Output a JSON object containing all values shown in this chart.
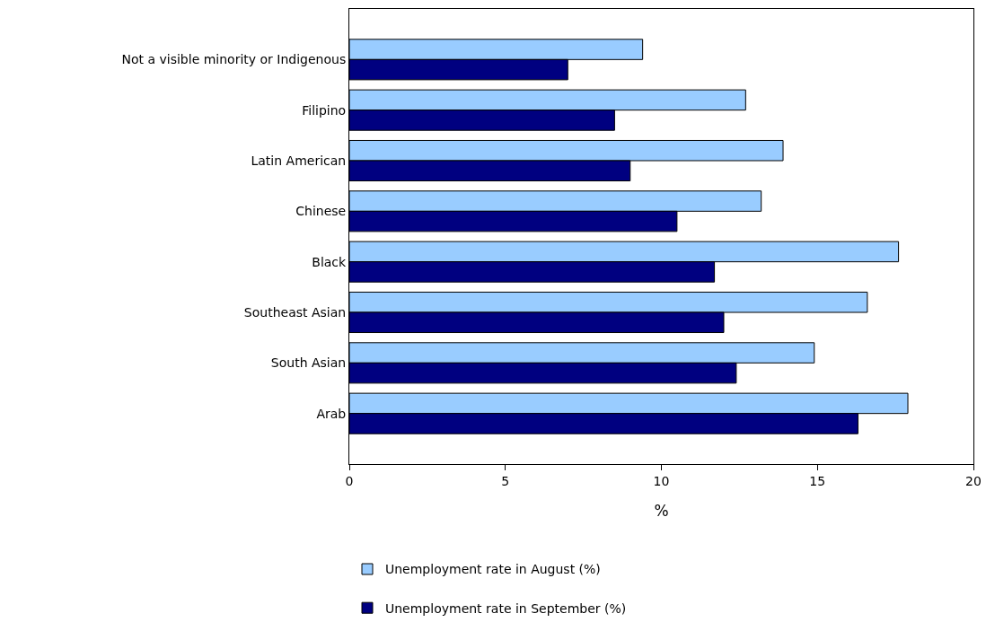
{
  "chart_data": {
    "type": "bar",
    "orientation": "horizontal",
    "xlabel": "%",
    "categories": [
      "Not a visible minority or Indigenous",
      "Filipino",
      "Latin American",
      "Chinese",
      "Black",
      "Southeast Asian",
      "South Asian",
      "Arab"
    ],
    "series": [
      {
        "name": "Unemployment rate in August (%)",
        "color": "#99ccff",
        "values": [
          9.4,
          12.7,
          13.9,
          13.2,
          17.6,
          16.6,
          14.9,
          17.9
        ]
      },
      {
        "name": "Unemployment rate in September (%)",
        "color": "#000080",
        "values": [
          7.0,
          8.5,
          9.0,
          10.5,
          11.7,
          12.0,
          12.4,
          16.3
        ]
      }
    ],
    "xlim": [
      0,
      20
    ],
    "xticks": [
      0,
      5,
      10,
      15,
      20
    ],
    "grid": false,
    "legend": "bottom"
  }
}
